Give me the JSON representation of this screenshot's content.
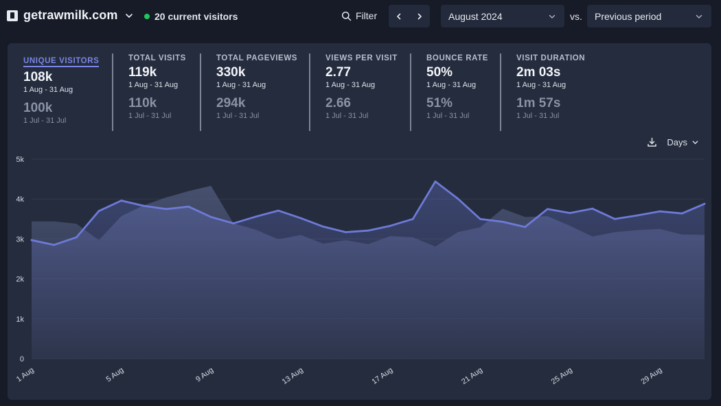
{
  "header": {
    "site_name": "getrawmilk.com",
    "current_visitors": "20 current visitors",
    "filter_label": "Filter",
    "period": "August 2024",
    "vs_label": "vs.",
    "compare_period": "Previous period"
  },
  "metrics": [
    {
      "label": "Unique visitors",
      "value": "108k",
      "range": "1 Aug - 31 Aug",
      "prev_value": "100k",
      "prev_range": "1 Jul - 31 Jul",
      "active": true
    },
    {
      "label": "Total visits",
      "value": "119k",
      "range": "1 Aug - 31 Aug",
      "prev_value": "110k",
      "prev_range": "1 Jul - 31 Jul"
    },
    {
      "label": "Total pageviews",
      "value": "330k",
      "range": "1 Aug - 31 Aug",
      "prev_value": "294k",
      "prev_range": "1 Jul - 31 Jul"
    },
    {
      "label": "Views per visit",
      "value": "2.77",
      "range": "1 Aug - 31 Aug",
      "prev_value": "2.66",
      "prev_range": "1 Jul - 31 Jul"
    },
    {
      "label": "Bounce rate",
      "value": "50%",
      "range": "1 Aug - 31 Aug",
      "prev_value": "51%",
      "prev_range": "1 Jul - 31 Jul"
    },
    {
      "label": "Visit duration",
      "value": "2m 03s",
      "range": "1 Aug - 31 Aug",
      "prev_value": "1m 57s",
      "prev_range": "1 Jul - 31 Jul"
    }
  ],
  "chart_tools": {
    "interval": "Days"
  },
  "colors": {
    "accent": "#6e7ad8",
    "live": "#22c55e",
    "background": "#161b27",
    "panel": "#242c3d"
  },
  "chart_data": {
    "type": "line",
    "y_ticks": [
      "0",
      "1k",
      "2k",
      "3k",
      "4k",
      "5k"
    ],
    "ylim": [
      0,
      5000
    ],
    "x_ticks": [
      "1 Aug",
      "5 Aug",
      "9 Aug",
      "13 Aug",
      "17 Aug",
      "21 Aug",
      "25 Aug",
      "29 Aug"
    ],
    "x": [
      "1 Aug",
      "2 Aug",
      "3 Aug",
      "4 Aug",
      "5 Aug",
      "6 Aug",
      "7 Aug",
      "8 Aug",
      "9 Aug",
      "10 Aug",
      "11 Aug",
      "12 Aug",
      "13 Aug",
      "14 Aug",
      "15 Aug",
      "16 Aug",
      "17 Aug",
      "18 Aug",
      "19 Aug",
      "20 Aug",
      "21 Aug",
      "22 Aug",
      "23 Aug",
      "24 Aug",
      "25 Aug",
      "26 Aug",
      "27 Aug",
      "28 Aug",
      "29 Aug",
      "30 Aug",
      "31 Aug"
    ],
    "series": [
      {
        "values": [
          2970,
          2850,
          3040,
          3700,
          3960,
          3830,
          3750,
          3810,
          3550,
          3390,
          3560,
          3710,
          3520,
          3310,
          3170,
          3210,
          3330,
          3500,
          4440,
          4010,
          3500,
          3430,
          3300,
          3750,
          3650,
          3760,
          3500,
          3590,
          3690,
          3640,
          3880
        ]
      },
      {
        "values": [
          3440,
          3440,
          3380,
          2970,
          3570,
          3840,
          4040,
          4200,
          4330,
          3390,
          3230,
          2990,
          3100,
          2880,
          2970,
          2870,
          3070,
          3040,
          2810,
          3170,
          3290,
          3760,
          3550,
          3570,
          3330,
          3060,
          3170,
          3220,
          3250,
          3110,
          3100
        ]
      }
    ],
    "grid": true
  }
}
